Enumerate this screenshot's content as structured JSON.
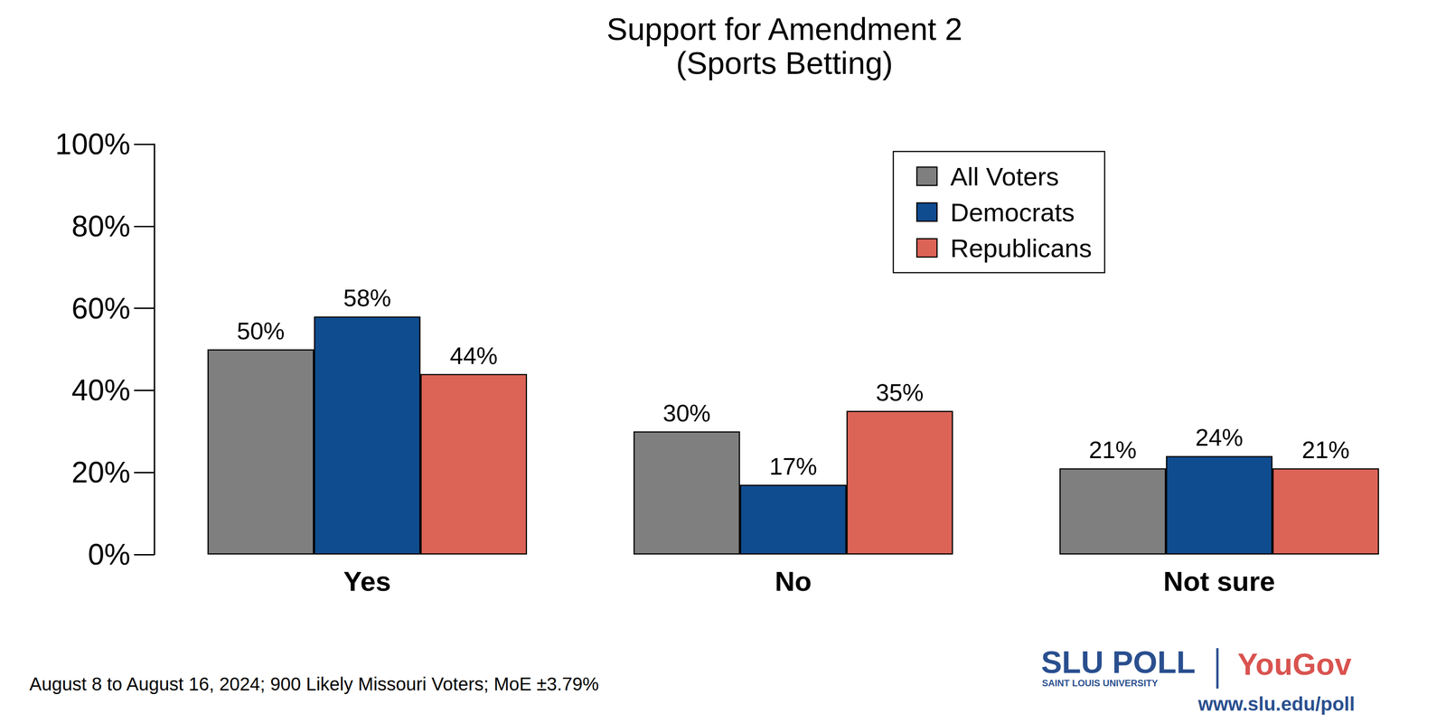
{
  "chart_data": {
    "type": "bar",
    "title": "Support for Amendment 2",
    "subtitle": "(Sports Betting)",
    "categories": [
      "Yes",
      "No",
      "Not sure"
    ],
    "series": [
      {
        "name": "All Voters",
        "color": "#7f7f7f",
        "values": [
          50,
          30,
          21
        ],
        "value_labels": [
          "50%",
          "30%",
          "21%"
        ]
      },
      {
        "name": "Democrats",
        "color": "#0f4c8f",
        "values": [
          58,
          17,
          24
        ],
        "value_labels": [
          "58%",
          "17%",
          "24%"
        ]
      },
      {
        "name": "Republicans",
        "color": "#dc6457",
        "values": [
          44,
          35,
          21
        ],
        "value_labels": [
          "44%",
          "35%",
          "21%"
        ]
      }
    ],
    "ylim": [
      0,
      100
    ],
    "yticks": [
      {
        "value": 0,
        "label": "0%"
      },
      {
        "value": 20,
        "label": "20%"
      },
      {
        "value": 40,
        "label": "40%"
      },
      {
        "value": 60,
        "label": "60%"
      },
      {
        "value": 80,
        "label": "80%"
      },
      {
        "value": 100,
        "label": "100%"
      }
    ],
    "grid": false,
    "legend": "upper right",
    "data_labels": true,
    "annotations": [
      "August 8 to August 16, 2024; 900 Likely Missouri Voters; MoE ±3.79%",
      "SLU POLL",
      "SAINT LOUIS UNIVERSITY",
      "YouGov",
      "www.slu.edu/poll"
    ]
  }
}
